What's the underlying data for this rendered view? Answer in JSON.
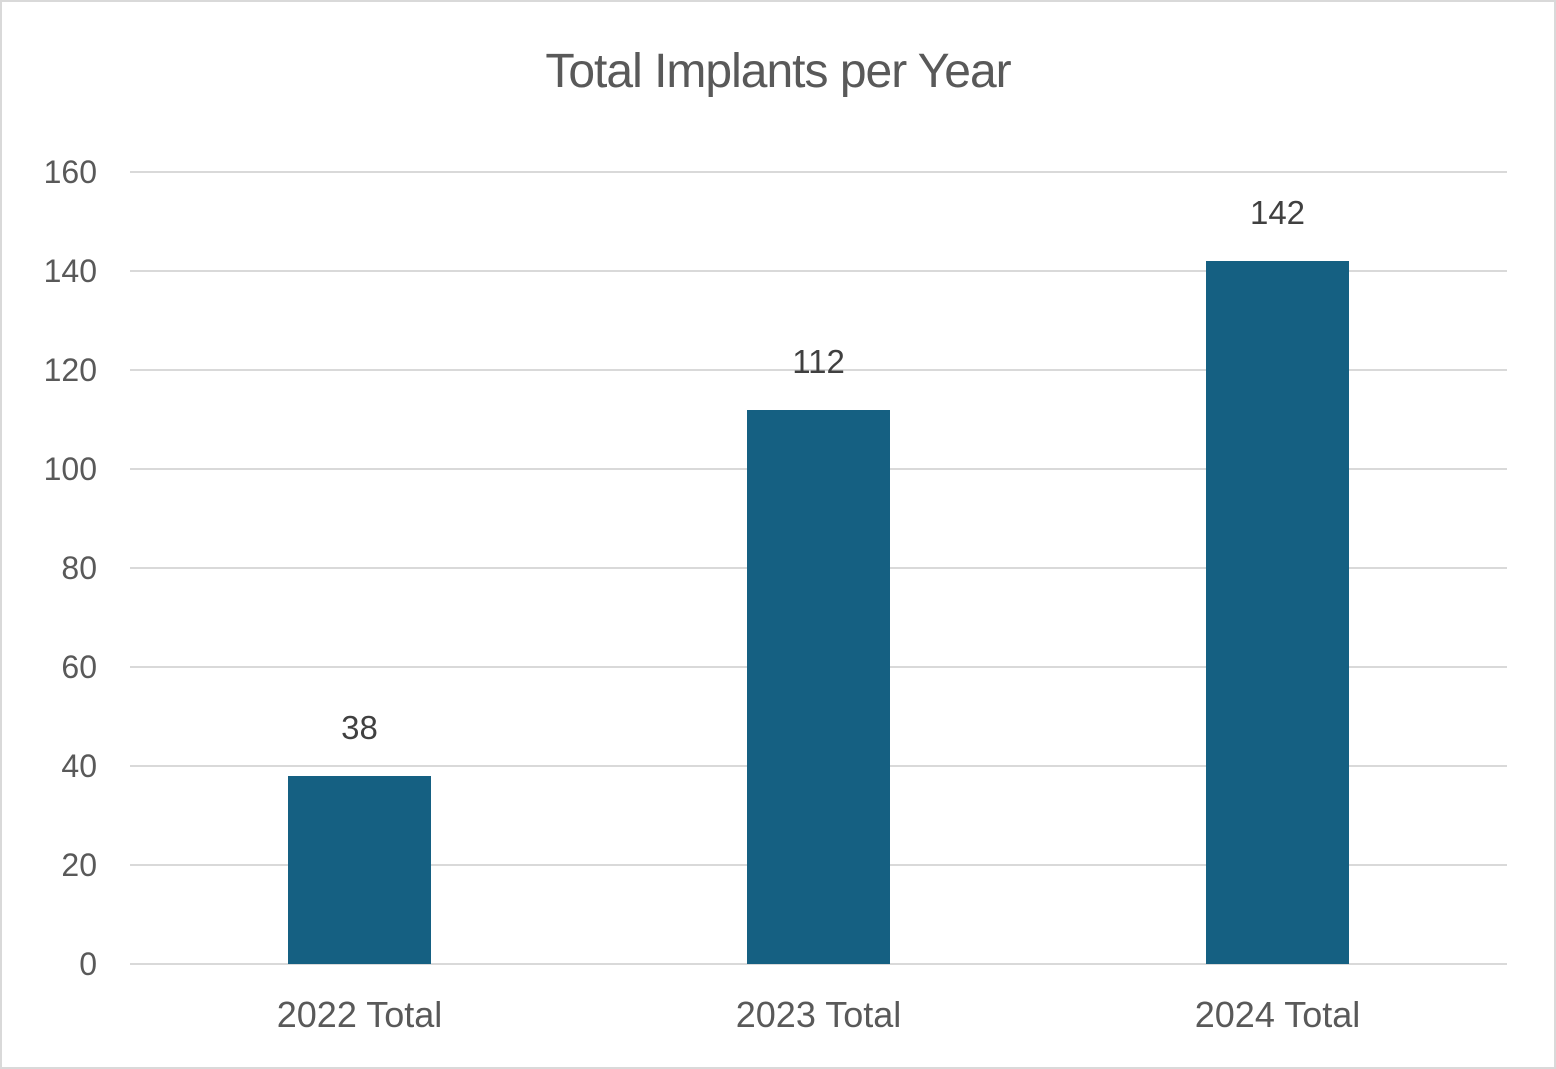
{
  "window": {
    "background_color": "#FFFFFF",
    "border_color": "#D9D9D9"
  },
  "chart_data": {
    "type": "bar",
    "title": "Total Implants per Year",
    "categories": [
      "2022 Total",
      "2023 Total",
      "2024 Total"
    ],
    "values": [
      38,
      112,
      142
    ],
    "data_labels": [
      "38",
      "112",
      "142"
    ],
    "xlabel": "",
    "ylabel": "",
    "ylim": [
      0,
      160
    ],
    "ytick_step": 20,
    "yticks": [
      "0",
      "20",
      "40",
      "60",
      "80",
      "100",
      "120",
      "140",
      "160"
    ],
    "grid": true,
    "legend_position": "none",
    "colors": {
      "bar_fill": "#156082",
      "gridline": "#D9D9D9",
      "title_text": "#595959",
      "axis_tick_text": "#595959",
      "category_text": "#595959",
      "data_label_text": "#404040"
    }
  }
}
